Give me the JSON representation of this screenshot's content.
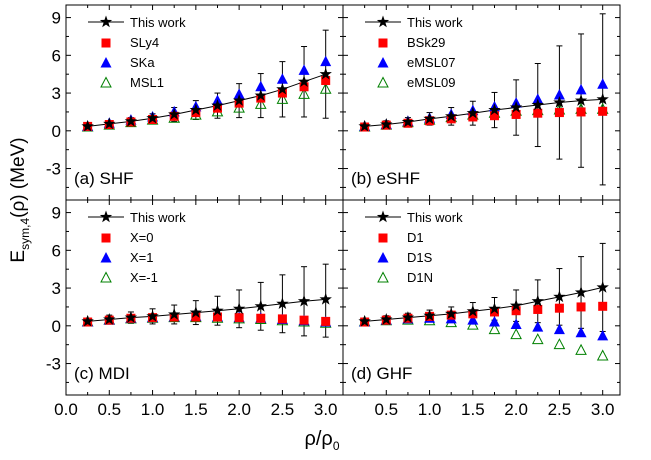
{
  "chart_data": {
    "type": "scatter",
    "xlabel_parts": {
      "main": "ρ/ρ",
      "sub": "0"
    },
    "ylabel_parts": {
      "main": "E",
      "sub": "sym,4",
      "tail": "(ρ) (MeV)"
    },
    "xlim": [
      0.0,
      3.2
    ],
    "ylim": [
      -5.5,
      10
    ],
    "x_ticks": [
      "0.0",
      "0.5",
      "1.0",
      "1.5",
      "2.0",
      "2.5",
      "3.0"
    ],
    "y_ticks": [
      "-3",
      "0",
      "3",
      "6",
      "9"
    ],
    "x": [
      0.25,
      0.5,
      0.75,
      1.0,
      1.25,
      1.5,
      1.75,
      2.0,
      2.25,
      2.5,
      2.75,
      3.0
    ],
    "panels": [
      {
        "label": "(a) SHF",
        "series": [
          {
            "name": "This work",
            "marker": "star",
            "color": "#000000",
            "values": [
              0.35,
              0.55,
              0.75,
              1.0,
              1.3,
              1.65,
              2.0,
              2.4,
              2.8,
              3.3,
              3.9,
              4.5
            ],
            "err_low": [
              0.2,
              0.25,
              0.3,
              0.35,
              0.55,
              0.75,
              1.0,
              1.35,
              1.75,
              2.2,
              2.8,
              3.5
            ],
            "err_high": [
              0.2,
              0.25,
              0.3,
              0.35,
              0.55,
              0.75,
              1.0,
              1.35,
              1.75,
              2.2,
              2.8,
              3.5
            ]
          },
          {
            "name": "SLy4",
            "marker": "square",
            "color": "#ff0000",
            "values": [
              0.35,
              0.5,
              0.7,
              0.9,
              1.15,
              1.45,
              1.8,
              2.2,
              2.6,
              3.0,
              3.5,
              4.0
            ]
          },
          {
            "name": "SKa",
            "marker": "triangle",
            "color": "#0000ff",
            "values": [
              0.35,
              0.6,
              0.85,
              1.1,
              1.5,
              1.9,
              2.4,
              2.9,
              3.5,
              4.1,
              4.8,
              5.5
            ]
          },
          {
            "name": "MSL1",
            "marker": "triangle-open",
            "color": "#008000",
            "values": [
              0.3,
              0.45,
              0.65,
              0.85,
              1.0,
              1.25,
              1.5,
              1.8,
              2.1,
              2.5,
              2.9,
              3.3
            ]
          }
        ]
      },
      {
        "label": "(b) eSHF",
        "series": [
          {
            "name": "This work",
            "marker": "star",
            "color": "#000000",
            "values": [
              0.35,
              0.5,
              0.7,
              0.95,
              1.15,
              1.4,
              1.65,
              1.85,
              2.05,
              2.25,
              2.4,
              2.5
            ],
            "err_low": [
              0.25,
              0.3,
              0.35,
              0.5,
              0.7,
              0.95,
              1.4,
              2.2,
              3.3,
              4.5,
              5.3,
              6.8
            ],
            "err_high": [
              0.25,
              0.3,
              0.35,
              0.5,
              0.7,
              0.95,
              1.4,
              2.2,
              3.3,
              4.5,
              5.3,
              6.8
            ]
          },
          {
            "name": "BSk29",
            "marker": "square",
            "color": "#ff0000",
            "values": [
              0.3,
              0.45,
              0.6,
              0.8,
              0.95,
              1.1,
              1.2,
              1.3,
              1.4,
              1.45,
              1.5,
              1.55
            ]
          },
          {
            "name": "eMSL07",
            "marker": "triangle",
            "color": "#0000ff",
            "values": [
              0.35,
              0.5,
              0.75,
              1.0,
              1.3,
              1.6,
              1.9,
              2.2,
              2.5,
              2.85,
              3.25,
              3.7
            ]
          },
          {
            "name": "eMSL09",
            "marker": "triangle-open",
            "color": "#008000",
            "values": [
              0.3,
              0.45,
              0.65,
              0.85,
              1.05,
              1.25,
              1.4,
              1.55,
              1.6,
              1.65,
              1.7,
              1.7
            ]
          }
        ]
      },
      {
        "label": "(c) MDI",
        "series": [
          {
            "name": "This work",
            "marker": "star",
            "color": "#000000",
            "values": [
              0.35,
              0.5,
              0.65,
              0.75,
              0.9,
              1.05,
              1.2,
              1.35,
              1.55,
              1.75,
              1.95,
              2.1
            ],
            "err_low": [
              0.25,
              0.35,
              0.45,
              0.6,
              0.75,
              0.95,
              1.15,
              1.5,
              1.9,
              2.3,
              2.75,
              3.0
            ],
            "err_high": [
              0.25,
              0.35,
              0.45,
              0.6,
              0.75,
              0.95,
              1.15,
              1.5,
              1.9,
              2.3,
              2.75,
              2.8
            ]
          },
          {
            "name": "X=0",
            "marker": "square",
            "color": "#ff0000",
            "values": [
              0.3,
              0.45,
              0.6,
              0.65,
              0.7,
              0.7,
              0.7,
              0.65,
              0.6,
              0.55,
              0.45,
              0.35
            ]
          },
          {
            "name": "X=1",
            "marker": "triangle",
            "color": "#0000ff",
            "values": [
              0.3,
              0.45,
              0.6,
              0.65,
              0.7,
              0.75,
              0.7,
              0.65,
              0.6,
              0.5,
              0.4,
              0.3
            ]
          },
          {
            "name": "X=-1",
            "marker": "triangle-open",
            "color": "#008000",
            "values": [
              0.3,
              0.45,
              0.55,
              0.6,
              0.65,
              0.65,
              0.6,
              0.55,
              0.5,
              0.4,
              0.3,
              0.2
            ]
          }
        ]
      },
      {
        "label": "(d) GHF",
        "series": [
          {
            "name": "This work",
            "marker": "star",
            "color": "#000000",
            "values": [
              0.35,
              0.5,
              0.65,
              0.8,
              0.95,
              1.15,
              1.35,
              1.6,
              1.95,
              2.3,
              2.65,
              3.05
            ],
            "err_low": [
              0.25,
              0.3,
              0.35,
              0.45,
              0.55,
              0.7,
              0.9,
              1.25,
              1.7,
              2.25,
              2.85,
              3.5
            ],
            "err_high": [
              0.25,
              0.3,
              0.35,
              0.45,
              0.55,
              0.7,
              0.9,
              1.25,
              1.7,
              2.25,
              2.85,
              3.5
            ]
          },
          {
            "name": "D1",
            "marker": "square",
            "color": "#ff0000",
            "values": [
              0.3,
              0.45,
              0.6,
              0.75,
              0.85,
              0.95,
              1.1,
              1.2,
              1.3,
              1.4,
              1.5,
              1.55
            ]
          },
          {
            "name": "D1S",
            "marker": "triangle",
            "color": "#0000ff",
            "values": [
              0.3,
              0.45,
              0.55,
              0.6,
              0.55,
              0.45,
              0.3,
              0.1,
              -0.1,
              -0.3,
              -0.55,
              -0.8
            ]
          },
          {
            "name": "D1N",
            "marker": "triangle-open",
            "color": "#008000",
            "values": [
              0.3,
              0.4,
              0.45,
              0.4,
              0.25,
              0.05,
              -0.3,
              -0.7,
              -1.1,
              -1.5,
              -1.95,
              -2.4
            ]
          }
        ]
      }
    ],
    "grid": false,
    "legend_position": "top-left"
  }
}
